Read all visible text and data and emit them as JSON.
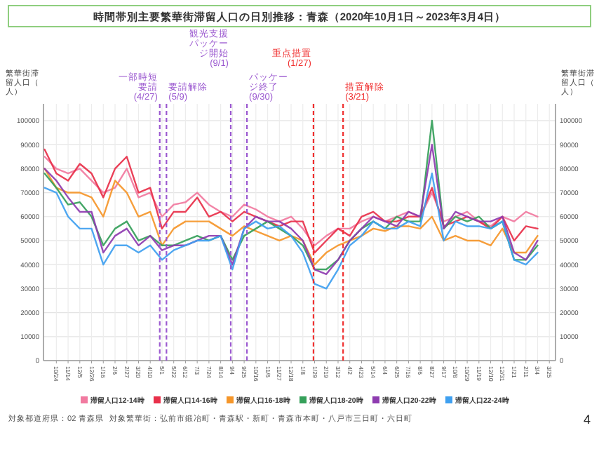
{
  "chart_data": {
    "type": "line",
    "title": "時間帯別主要繁華街滞留人口の日別推移：青森（2020年10月1日～2023年3月4日）",
    "ylabel": "繁華街滞留人口（人）",
    "y2label": "繁華街滞留人口（人）",
    "x": [
      "2020-10-03",
      "2020-10-24",
      "2020-11-14",
      "2020-12-05",
      "2020-12-26",
      "2021-01-16",
      "2021-02-06",
      "2021-02-27",
      "2021-03-20",
      "2021-04-10",
      "2021-05-01",
      "2021-05-22",
      "2021-06-12",
      "2021-07-03",
      "2021-07-24",
      "2021-08-14",
      "2021-09-04",
      "2021-09-25",
      "2021-10-16",
      "2021-11-06",
      "2021-11-27",
      "2021-12-18",
      "2022-01-08",
      "2022-01-29",
      "2022-02-19",
      "2022-03-12",
      "2022-04-02",
      "2022-04-23",
      "2022-05-14",
      "2022-06-04",
      "2022-06-25",
      "2022-07-16",
      "2022-08-06",
      "2022-08-27",
      "2022-09-17",
      "2022-10-08",
      "2022-10-29",
      "2022-11-19",
      "2022-12-10",
      "2022-12-31",
      "2023-01-21",
      "2023-02-11",
      "2023-03-04"
    ],
    "series": [
      {
        "name": "滞留人口12-14時",
        "color": "#f17aa0",
        "values": [
          85000,
          80000,
          78000,
          80000,
          75000,
          70000,
          72000,
          80000,
          68000,
          70000,
          60000,
          65000,
          66000,
          70000,
          65000,
          62000,
          60000,
          65000,
          63000,
          60000,
          58000,
          60000,
          55000,
          48000,
          52000,
          55000,
          55000,
          58000,
          60000,
          58000,
          60000,
          62000,
          60000,
          70000,
          58000,
          60000,
          62000,
          58000,
          56000,
          60000,
          58000,
          62000,
          60000
        ]
      },
      {
        "name": "滞留人口14-16時",
        "color": "#e8304a",
        "values": [
          88000,
          78000,
          75000,
          82000,
          78000,
          68000,
          80000,
          85000,
          70000,
          72000,
          55000,
          62000,
          62000,
          68000,
          60000,
          62000,
          58000,
          62000,
          60000,
          58000,
          56000,
          58000,
          58000,
          45000,
          50000,
          55000,
          52000,
          60000,
          62000,
          58000,
          58000,
          60000,
          60000,
          72000,
          56000,
          58000,
          60000,
          58000,
          55000,
          60000,
          50000,
          56000,
          55000
        ]
      },
      {
        "name": "滞留人口16-18時",
        "color": "#f5962a",
        "values": [
          80000,
          72000,
          70000,
          70000,
          68000,
          60000,
          75000,
          70000,
          60000,
          62000,
          48000,
          55000,
          58000,
          58000,
          58000,
          55000,
          52000,
          56000,
          54000,
          52000,
          50000,
          52000,
          50000,
          40000,
          45000,
          48000,
          50000,
          52000,
          55000,
          54000,
          56000,
          56000,
          55000,
          60000,
          50000,
          52000,
          50000,
          50000,
          48000,
          55000,
          45000,
          45000,
          52000
        ]
      },
      {
        "name": "滞留人口18-20時",
        "color": "#35a05a",
        "values": [
          78000,
          72000,
          65000,
          66000,
          60000,
          48000,
          55000,
          58000,
          50000,
          52000,
          48000,
          48000,
          50000,
          52000,
          50000,
          52000,
          42000,
          52000,
          55000,
          58000,
          55000,
          52000,
          48000,
          38000,
          38000,
          42000,
          50000,
          55000,
          58000,
          55000,
          60000,
          58000,
          58000,
          100000,
          55000,
          60000,
          58000,
          60000,
          55000,
          58000,
          42000,
          42000,
          48000
        ]
      },
      {
        "name": "滞留人口20-22時",
        "color": "#8e3cb0",
        "values": [
          80000,
          75000,
          68000,
          62000,
          62000,
          45000,
          52000,
          55000,
          48000,
          52000,
          46000,
          48000,
          48000,
          50000,
          52000,
          52000,
          40000,
          55000,
          60000,
          58000,
          58000,
          55000,
          50000,
          38000,
          36000,
          42000,
          50000,
          55000,
          60000,
          58000,
          56000,
          62000,
          60000,
          90000,
          55000,
          62000,
          60000,
          58000,
          58000,
          60000,
          45000,
          42000,
          50000
        ]
      },
      {
        "name": "滞留人口22-24時",
        "color": "#3fa0f0",
        "values": [
          72000,
          70000,
          60000,
          55000,
          55000,
          40000,
          48000,
          48000,
          45000,
          48000,
          42000,
          46000,
          48000,
          50000,
          50000,
          52000,
          38000,
          55000,
          58000,
          55000,
          56000,
          52000,
          45000,
          32000,
          30000,
          38000,
          48000,
          52000,
          58000,
          55000,
          55000,
          58000,
          56000,
          78000,
          50000,
          58000,
          56000,
          56000,
          55000,
          58000,
          42000,
          40000,
          45000
        ]
      }
    ],
    "xlim": [
      "2020-10-01",
      "2023-04-05"
    ],
    "xticks": [
      {
        "value": "2020-10-24",
        "label": "10/24"
      },
      {
        "value": "2020-11-14",
        "label": "11/14"
      },
      {
        "value": "2020-12-05",
        "label": "12/5"
      },
      {
        "value": "2020-12-26",
        "label": "12/26"
      },
      {
        "value": "2021-01-16",
        "label": "1/16"
      },
      {
        "value": "2021-02-06",
        "label": "2/6"
      },
      {
        "value": "2021-02-27",
        "label": "2/27"
      },
      {
        "value": "2021-03-20",
        "label": "3/20"
      },
      {
        "value": "2021-04-10",
        "label": "4/10"
      },
      {
        "value": "2021-05-01",
        "label": "5/1"
      },
      {
        "value": "2021-05-22",
        "label": "5/22"
      },
      {
        "value": "2021-06-12",
        "label": "6/12"
      },
      {
        "value": "2021-07-03",
        "label": "7/3"
      },
      {
        "value": "2021-07-24",
        "label": "7/24"
      },
      {
        "value": "2021-08-14",
        "label": "8/14"
      },
      {
        "value": "2021-09-04",
        "label": "9/4"
      },
      {
        "value": "2021-09-25",
        "label": "9/25"
      },
      {
        "value": "2021-10-16",
        "label": "10/16"
      },
      {
        "value": "2021-11-06",
        "label": "11/6"
      },
      {
        "value": "2021-11-27",
        "label": "11/27"
      },
      {
        "value": "2021-12-18",
        "label": "12/18"
      },
      {
        "value": "2022-01-08",
        "label": "1/8"
      },
      {
        "value": "2022-01-29",
        "label": "1/29"
      },
      {
        "value": "2022-02-19",
        "label": "2/19"
      },
      {
        "value": "2022-03-12",
        "label": "3/12"
      },
      {
        "value": "2022-04-02",
        "label": "4/2"
      },
      {
        "value": "2022-04-23",
        "label": "4/23"
      },
      {
        "value": "2022-05-14",
        "label": "5/14"
      },
      {
        "value": "2022-06-04",
        "label": "6/4"
      },
      {
        "value": "2022-06-25",
        "label": "6/25"
      },
      {
        "value": "2022-07-16",
        "label": "7/16"
      },
      {
        "value": "2022-08-06",
        "label": "8/6"
      },
      {
        "value": "2022-08-27",
        "label": "8/27"
      },
      {
        "value": "2022-09-17",
        "label": "9/17"
      },
      {
        "value": "2022-10-08",
        "label": "10/8"
      },
      {
        "value": "2022-10-29",
        "label": "10/29"
      },
      {
        "value": "2022-11-19",
        "label": "11/19"
      },
      {
        "value": "2022-12-10",
        "label": "12/10"
      },
      {
        "value": "2022-12-31",
        "label": "12/31"
      },
      {
        "value": "2023-01-21",
        "label": "1/21"
      },
      {
        "value": "2023-02-11",
        "label": "2/11"
      },
      {
        "value": "2023-03-04",
        "label": "3/4"
      },
      {
        "value": "2023-03-25",
        "label": "3/25"
      }
    ],
    "ylim": [
      0,
      107000
    ],
    "yticks": [
      0,
      10000,
      20000,
      30000,
      40000,
      50000,
      60000,
      70000,
      80000,
      90000,
      100000
    ],
    "y2lim": [
      0,
      107000
    ],
    "y2ticks": [
      0,
      10000,
      20000,
      30000,
      40000,
      50000,
      60000,
      70000,
      80000,
      90000,
      100000
    ],
    "grid": true,
    "legend": "bottom",
    "ref_lines": [
      {
        "axis": "x",
        "value": "2021-04-27",
        "label": "一部時短要請(4/27)",
        "color": "#9b59d0",
        "line_style": "dashed"
      },
      {
        "axis": "x",
        "value": "2021-05-09",
        "label": "要請解除(5/9)",
        "color": "#9b59d0",
        "line_style": "dashed"
      },
      {
        "axis": "x",
        "value": "2021-09-01",
        "label": "観光支援パッケージ開始(9/1)",
        "color": "#9b59d0",
        "line_style": "dashed"
      },
      {
        "axis": "x",
        "value": "2021-09-30",
        "label": "パッケージ終了(9/30)",
        "color": "#9b59d0",
        "line_style": "dashed"
      },
      {
        "axis": "x",
        "value": "2022-01-27",
        "label": "重点措置(1/27)",
        "color": "#f03030",
        "line_style": "dashed"
      },
      {
        "axis": "x",
        "value": "2022-03-21",
        "label": "措置解除(3/21)",
        "color": "#f03030",
        "line_style": "dashed"
      }
    ],
    "annotations": [
      "対象都道府県：02 青森県",
      "対象繁華街：弘前市鍛冶町・青森駅・新町・青森市本町・八戸市三日町・六日町",
      "4"
    ]
  }
}
